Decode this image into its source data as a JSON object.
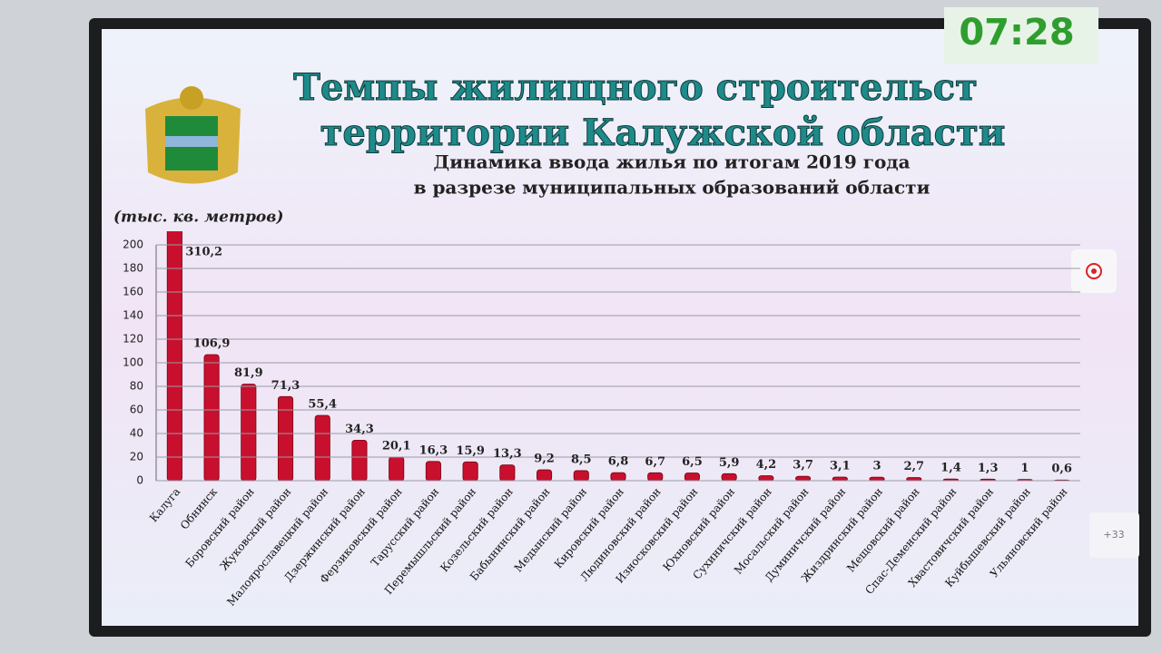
{
  "screen": {
    "clock": "07:28",
    "badge": "+33"
  },
  "chart_data": {
    "type": "bar",
    "title": [
      "Темпы жилищного строительст",
      "территории Калужской области"
    ],
    "subtitle": [
      "Динамика ввода жилья по итогам 2019 года",
      "в разрезе муниципальных образований области"
    ],
    "y_label": "(тыс. кв. метров)",
    "categories": [
      "Калуга",
      "Обнинск",
      "Боровский район",
      "Жуковский район",
      "Малоярославецкий район",
      "Дзержинский район",
      "Ферзиковский район",
      "Тарусский район",
      "Перемышльский район",
      "Козельский район",
      "Бабынинский район",
      "Медынский район",
      "Кировский район",
      "Людиновский район",
      "Износковский район",
      "Юхновский район",
      "Сухиничский район",
      "Мосальский район",
      "Думиничский район",
      "Жиздринский район",
      "Мещовский район",
      "Спас-Деменский район",
      "Хвастовичский район",
      "Куйбышевский район",
      "Ульяновский район"
    ],
    "values": [
      310.2,
      106.9,
      81.9,
      71.3,
      55.4,
      34.3,
      20.1,
      16.3,
      15.9,
      13.3,
      9.2,
      8.5,
      6.8,
      6.7,
      6.5,
      5.9,
      4.2,
      3.7,
      3.1,
      3,
      2.7,
      1.4,
      1.3,
      1,
      0.6
    ],
    "value_labels": [
      "310,2",
      "106,9",
      "81,9",
      "71,3",
      "55,4",
      "34,3",
      "20,1",
      "16,3",
      "15,9",
      "13,3",
      "9,2",
      "8,5",
      "6,8",
      "6,7",
      "6,5",
      "5,9",
      "4,2",
      "3,7",
      "3,1",
      "3",
      "2,7",
      "1,4",
      "1,3",
      "1",
      "0,6"
    ],
    "color": "#c8102e",
    "ylim": [
      0,
      200
    ],
    "yticks": [
      0,
      20,
      40,
      60,
      80,
      100,
      120,
      140,
      160,
      180,
      200
    ],
    "grid": true
  }
}
